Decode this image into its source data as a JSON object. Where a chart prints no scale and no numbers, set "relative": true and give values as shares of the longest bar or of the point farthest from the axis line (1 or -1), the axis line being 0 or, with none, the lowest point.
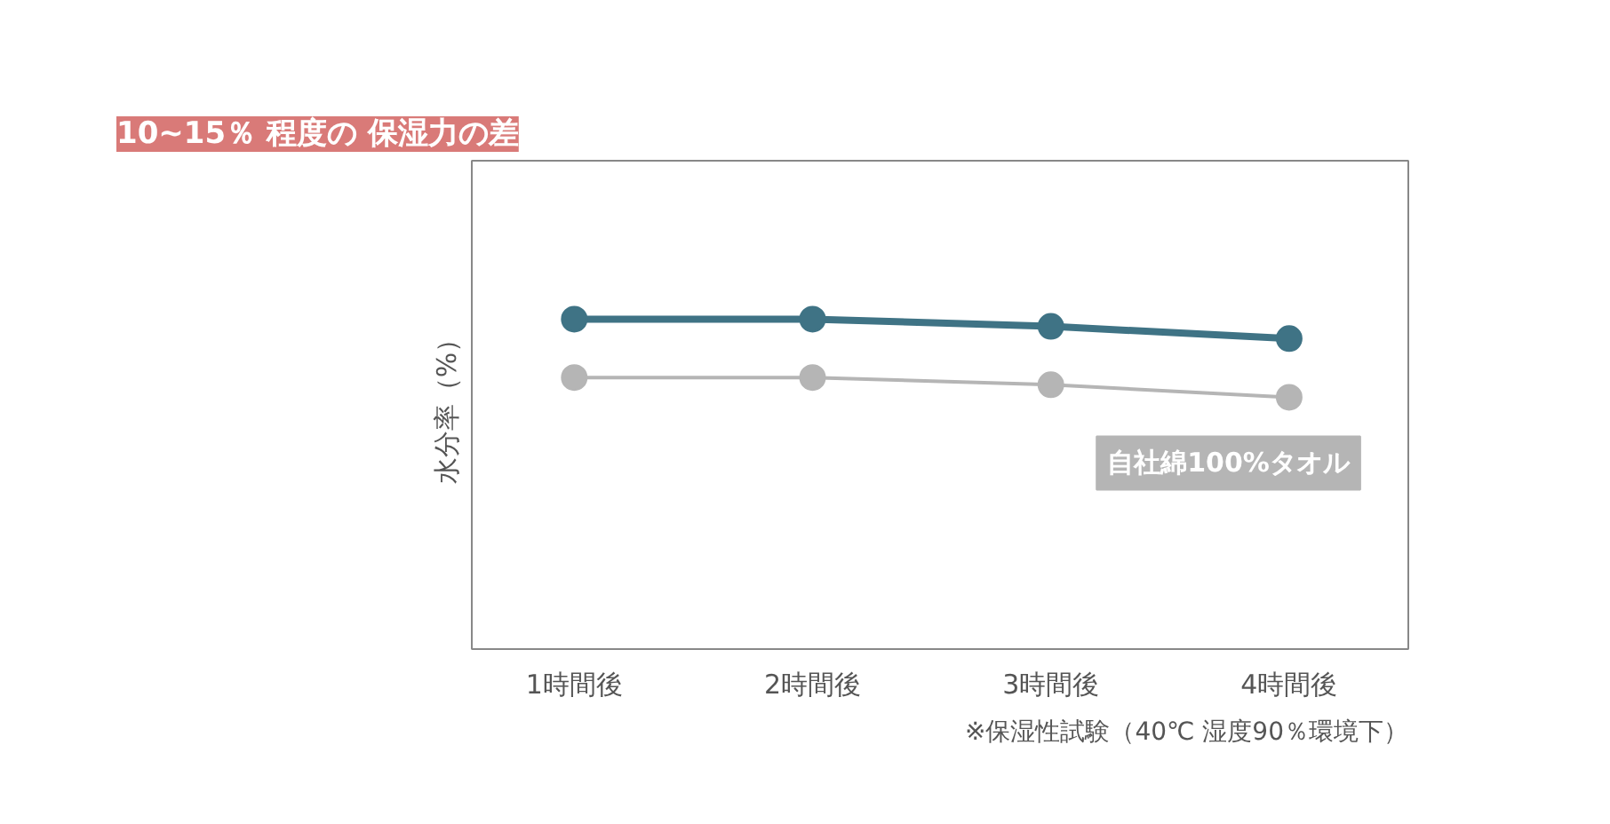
{
  "chart_data": {
    "type": "line",
    "relative": true,
    "categories": [
      "1時間後",
      "2時間後",
      "3時間後",
      "4時間後"
    ],
    "ylabel": "水分率（%）",
    "series": [
      {
        "color": "#3f7385",
        "values": [
          1,
          1,
          0.978,
          0.941
        ]
      },
      {
        "name": "自社綿100%タオル",
        "color": "#b5b5b5",
        "values": [
          0.823,
          0.823,
          0.801,
          0.763
        ]
      }
    ],
    "marker": "circle",
    "line_style": "solid",
    "legend": false,
    "annotations": [
      "10~15％ 程度の 保湿力の差",
      "※保湿性試験（40℃ 湿度90％環境下）"
    ]
  }
}
